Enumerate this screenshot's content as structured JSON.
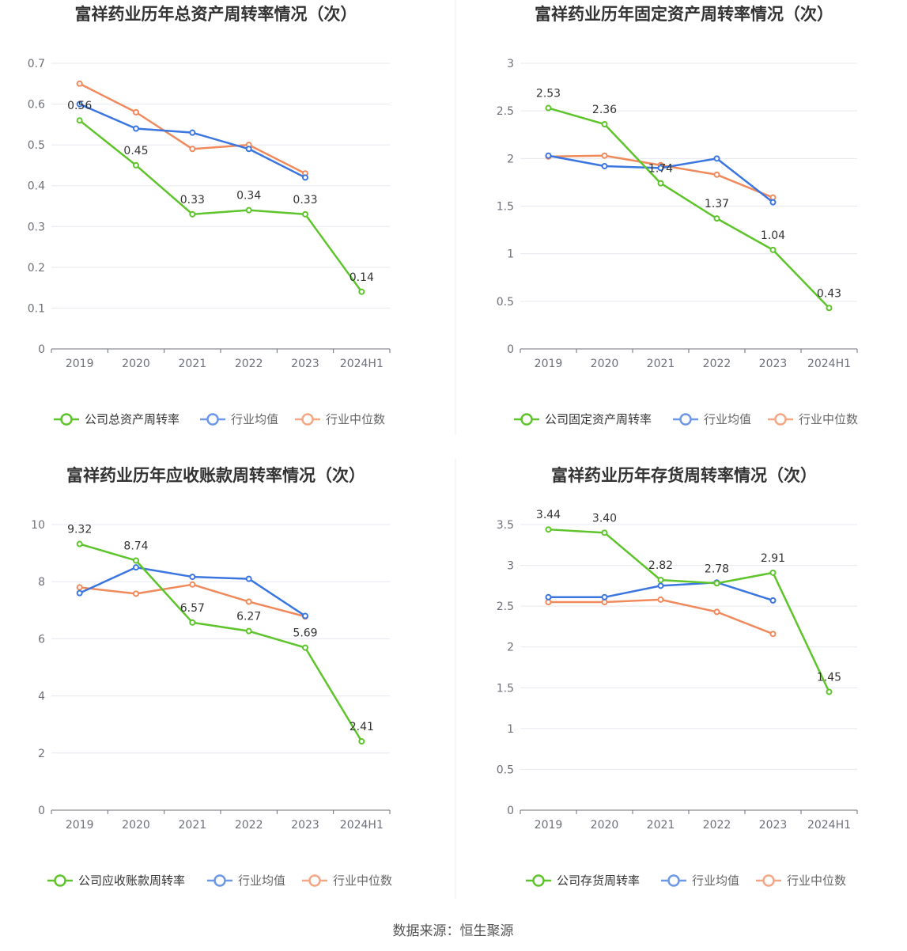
{
  "colors": {
    "company": "#5ec42b",
    "industry_avg": "#3b76e0",
    "industry_median": "#f08a5d"
  },
  "source": "数据来源：恒生聚源",
  "chart_data": [
    {
      "type": "line",
      "title": "富祥药业历年总资产周转率情况（次）",
      "categories": [
        "2019",
        "2020",
        "2021",
        "2022",
        "2023",
        "2024H1"
      ],
      "ylim": [
        0,
        0.7
      ],
      "yticks": [
        "0",
        "0.1",
        "0.2",
        "0.3",
        "0.4",
        "0.5",
        "0.6",
        "0.7"
      ],
      "grid": true,
      "legend_position": "bottom",
      "series": [
        {
          "name": "公司总资产周转率",
          "key": "company",
          "values": [
            0.56,
            0.45,
            0.33,
            0.34,
            0.33,
            0.14
          ],
          "labels": [
            "0.56",
            "0.45",
            "0.33",
            "0.34",
            "0.33",
            "0.14"
          ]
        },
        {
          "name": "行业均值",
          "key": "industry_avg",
          "values": [
            0.6,
            0.54,
            0.53,
            0.49,
            0.42,
            null
          ]
        },
        {
          "name": "行业中位数",
          "key": "industry_median",
          "values": [
            0.65,
            0.58,
            0.49,
            0.5,
            0.43,
            null
          ]
        }
      ]
    },
    {
      "type": "line",
      "title": "富祥药业历年固定资产周转率情况（次）",
      "categories": [
        "2019",
        "2020",
        "2021",
        "2022",
        "2023",
        "2024H1"
      ],
      "ylim": [
        0,
        3
      ],
      "yticks": [
        "0",
        "0.5",
        "1",
        "1.5",
        "2",
        "2.5",
        "3"
      ],
      "grid": true,
      "legend_position": "bottom",
      "series": [
        {
          "name": "公司固定资产周转率",
          "key": "company",
          "values": [
            2.53,
            2.36,
            1.74,
            1.37,
            1.04,
            0.43
          ],
          "labels": [
            "2.53",
            "2.36",
            "1.74",
            "1.37",
            "1.04",
            "0.43"
          ]
        },
        {
          "name": "行业均值",
          "key": "industry_avg",
          "values": [
            2.03,
            1.92,
            1.9,
            2.0,
            1.54,
            null
          ]
        },
        {
          "name": "行业中位数",
          "key": "industry_median",
          "values": [
            2.02,
            2.03,
            1.93,
            1.83,
            1.59,
            null
          ]
        }
      ]
    },
    {
      "type": "line",
      "title": "富祥药业历年应收账款周转率情况（次）",
      "categories": [
        "2019",
        "2020",
        "2021",
        "2022",
        "2023",
        "2024H1"
      ],
      "ylim": [
        0,
        10
      ],
      "yticks": [
        "0",
        "2",
        "4",
        "6",
        "8",
        "10"
      ],
      "grid": true,
      "legend_position": "bottom",
      "series": [
        {
          "name": "公司应收账款周转率",
          "key": "company",
          "values": [
            9.32,
            8.74,
            6.57,
            6.27,
            5.69,
            2.41
          ],
          "labels": [
            "9.32",
            "8.74",
            "6.57",
            "6.27",
            "5.69",
            "2.41"
          ]
        },
        {
          "name": "行业均值",
          "key": "industry_avg",
          "values": [
            7.6,
            8.5,
            8.17,
            8.1,
            6.8,
            null
          ]
        },
        {
          "name": "行业中位数",
          "key": "industry_median",
          "values": [
            7.8,
            7.58,
            7.9,
            7.3,
            6.78,
            null
          ]
        }
      ]
    },
    {
      "type": "line",
      "title": "富祥药业历年存货周转率情况（次）",
      "categories": [
        "2019",
        "2020",
        "2021",
        "2022",
        "2023",
        "2024H1"
      ],
      "ylim": [
        0,
        3.5
      ],
      "yticks": [
        "0",
        "0.5",
        "1",
        "1.5",
        "2",
        "2.5",
        "3",
        "3.5"
      ],
      "grid": true,
      "legend_position": "bottom",
      "series": [
        {
          "name": "公司存货周转率",
          "key": "company",
          "values": [
            3.44,
            3.4,
            2.82,
            2.78,
            2.91,
            1.45
          ],
          "labels": [
            "3.44",
            "3.40",
            "2.82",
            "2.78",
            "2.91",
            "1.45"
          ]
        },
        {
          "name": "行业均值",
          "key": "industry_avg",
          "values": [
            2.61,
            2.61,
            2.75,
            2.79,
            2.57,
            null
          ]
        },
        {
          "name": "行业中位数",
          "key": "industry_median",
          "values": [
            2.55,
            2.55,
            2.58,
            2.43,
            2.16,
            null
          ]
        }
      ]
    }
  ]
}
